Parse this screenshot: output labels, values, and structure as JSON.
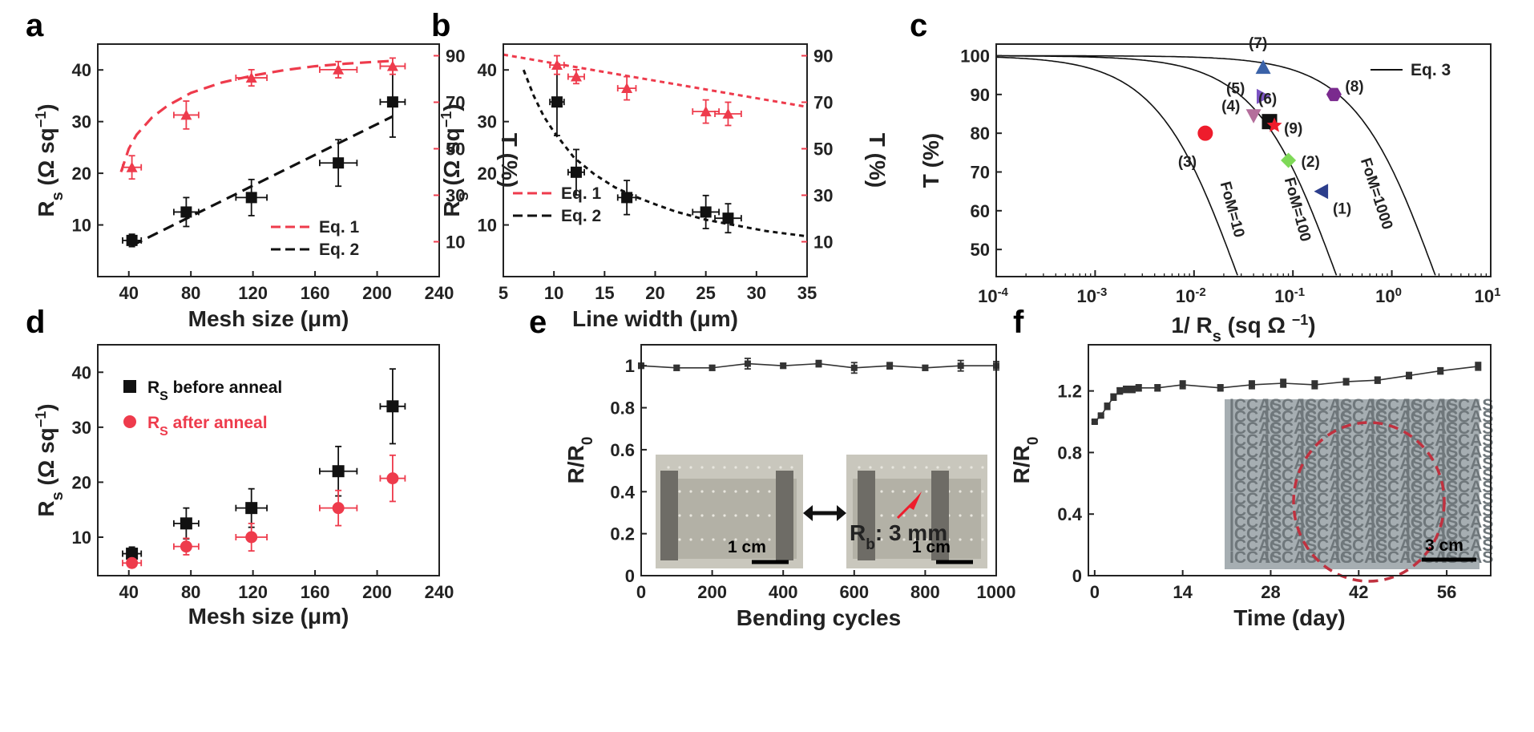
{
  "chart_data": [
    {
      "id": "a",
      "type": "scatter",
      "panel_letter": "a",
      "xlabel": "Mesh size (μm)",
      "xlim": [
        20,
        240
      ],
      "xticks": [
        40,
        80,
        120,
        160,
        200,
        240
      ],
      "ylabel": "Rs (Ω sq⁻¹)",
      "ylabel_main": "R",
      "ylabel_sub": "s",
      "ylabel_rest": " (Ω sq",
      "ylabel_sup": "−1",
      "ylabel_close": ")",
      "ylim": [
        0,
        45
      ],
      "yticks": [
        10,
        20,
        30,
        40
      ],
      "y2label": "T (%)",
      "y2lim": [
        -5,
        95
      ],
      "y2ticks": [
        10,
        30,
        50,
        70,
        90
      ],
      "colors": {
        "black": "#111111",
        "red": "#ee3b4c"
      },
      "series": [
        {
          "name": "Rs",
          "axis": "left",
          "marker": "square",
          "color": "#111111",
          "x": [
            42,
            77,
            119,
            175,
            210
          ],
          "y": [
            7,
            12.5,
            15.3,
            22,
            33.8
          ],
          "xerr": [
            6,
            8,
            10,
            12,
            8
          ],
          "yerr": [
            1.2,
            2.8,
            3.5,
            4.5,
            6.8
          ]
        },
        {
          "name": "T",
          "axis": "right",
          "marker": "triangle",
          "color": "#ee3b4c",
          "x": [
            42,
            77,
            119,
            175,
            210
          ],
          "y": [
            42,
            64.5,
            80.5,
            84,
            85.5
          ],
          "xerr": [
            6,
            8,
            10,
            12,
            8
          ],
          "yerr": [
            5,
            6,
            3.5,
            3.5,
            3.5
          ]
        }
      ],
      "curves": [
        {
          "name": "Eq. 1",
          "axis": "right",
          "color": "#ee3b4c",
          "dash": "dashed",
          "x": [
            35,
            40,
            45,
            55,
            65,
            80,
            100,
            120,
            140,
            160,
            180,
            200,
            210
          ],
          "y": [
            40,
            50,
            56,
            63.5,
            68.5,
            74,
            78.5,
            81.5,
            83.8,
            85.5,
            86.6,
            87.4,
            87.8
          ]
        },
        {
          "name": "Eq. 2",
          "axis": "left",
          "color": "#111111",
          "dash": "dashed",
          "x": [
            42,
            210
          ],
          "y": [
            6,
            31
          ]
        }
      ],
      "legend": {
        "position": "bottom-right",
        "items": [
          {
            "label": "Eq. 1",
            "color": "#ee3b4c"
          },
          {
            "label": "Eq. 2",
            "color": "#111111"
          }
        ]
      }
    },
    {
      "id": "b",
      "type": "scatter",
      "panel_letter": "b",
      "xlabel": "Line width (μm)",
      "xlim": [
        5,
        35
      ],
      "xticks": [
        5,
        10,
        15,
        20,
        25,
        30,
        35
      ],
      "ylabel": "Rs (Ω sq⁻¹)",
      "ylabel_main": "R",
      "ylabel_sub": "s",
      "ylabel_rest": " (Ω sq",
      "ylabel_sup": "−1",
      "ylabel_close": ")",
      "ylim": [
        0,
        45
      ],
      "yticks": [
        10,
        20,
        30,
        40
      ],
      "y2label": "T (%)",
      "y2lim": [
        -5,
        95
      ],
      "y2ticks": [
        10,
        30,
        50,
        70,
        90
      ],
      "series": [
        {
          "name": "Rs",
          "axis": "left",
          "marker": "square",
          "color": "#111111",
          "x": [
            10.3,
            12.2,
            17.2,
            25,
            27.2
          ],
          "y": [
            33.8,
            20.2,
            15.3,
            12.5,
            11.3
          ],
          "xerr": [
            0.7,
            0.8,
            0.9,
            1.3,
            1.3
          ],
          "yerr": [
            6.5,
            4.4,
            3.3,
            3.2,
            2.8
          ]
        },
        {
          "name": "T",
          "axis": "right",
          "marker": "triangle",
          "color": "#ee3b4c",
          "x": [
            10.3,
            12.2,
            17.2,
            25,
            27.2
          ],
          "y": [
            86,
            81,
            76,
            66,
            65
          ],
          "xerr": [
            0.7,
            0.8,
            0.9,
            1.3,
            1.3
          ],
          "yerr": [
            4,
            3,
            5,
            5,
            5
          ]
        }
      ],
      "curves": [
        {
          "name": "Eq. 1",
          "axis": "right",
          "color": "#ee3b4c",
          "dash": "dashed",
          "x": [
            5,
            35
          ],
          "y": [
            90.5,
            68
          ]
        },
        {
          "name": "Eq. 2",
          "axis": "left",
          "color": "#111111",
          "dash": "dashed",
          "x": [
            7,
            8,
            9,
            10,
            11,
            12,
            14,
            16,
            18,
            20,
            22,
            25,
            28,
            31,
            35
          ],
          "y": [
            40,
            35,
            31,
            28,
            25.5,
            23,
            19.8,
            17.3,
            15.5,
            14,
            12.6,
            11,
            9.9,
            8.8,
            7.8
          ]
        }
      ],
      "legend": {
        "position": "bottom-left",
        "items": [
          {
            "label": "Eq. 1",
            "color": "#ee3b4c"
          },
          {
            "label": "Eq. 2",
            "color": "#111111"
          }
        ]
      }
    },
    {
      "id": "c",
      "type": "scatter",
      "panel_letter": "c",
      "xscale": "log",
      "xlabel": "1/ Rs (sq Ω −1)",
      "xlabel_a": "1/ R",
      "xlabel_sub": "s",
      "xlabel_b": " (sq Ω ",
      "xlabel_sup": "−1",
      "xlabel_c": ")",
      "xlim_exp": [
        -4,
        1
      ],
      "xtick_exps": [
        -4,
        -3,
        -2,
        -1,
        0,
        1
      ],
      "ylabel": "T  (%)",
      "ylim": [
        43,
        103
      ],
      "yticks": [
        50,
        60,
        70,
        80,
        90,
        100
      ],
      "points": [
        {
          "label": "(1)",
          "x": 0.195,
          "y": 65,
          "marker": "triangle-left",
          "color": "#2c3e8c"
        },
        {
          "label": "(2)",
          "x": 0.09,
          "y": 73,
          "marker": "diamond",
          "color": "#7ed957"
        },
        {
          "label": "(3)",
          "x": 0.013,
          "y": 80,
          "marker": "circle",
          "color": "#ee1c2c"
        },
        {
          "label": "(4)",
          "x": 0.04,
          "y": 84.5,
          "marker": "triangle-down",
          "color": "#b46e9b"
        },
        {
          "label": "(5)",
          "x": 0.05,
          "y": 89.5,
          "marker": "triangle-right",
          "color": "#7b53c2"
        },
        {
          "label": "(6)",
          "x": 0.058,
          "y": 83,
          "marker": "square",
          "color": "#111111"
        },
        {
          "label": "(7)",
          "x": 0.05,
          "y": 97,
          "marker": "triangle",
          "color": "#3a62a8"
        },
        {
          "label": "(8)",
          "x": 0.26,
          "y": 90,
          "marker": "hexagon",
          "color": "#7a2a8e"
        },
        {
          "label": "(9)",
          "x": 0.065,
          "y": 82,
          "marker": "star",
          "color": "#ee1c2c"
        }
      ],
      "fom_curves": [
        {
          "label": "FoM=10",
          "fom": 10
        },
        {
          "label": "FoM=100",
          "fom": 100
        },
        {
          "label": "FoM=1000",
          "fom": 1000
        }
      ],
      "legend": {
        "position": "top-right",
        "label": "Eq. 3"
      }
    },
    {
      "id": "d",
      "type": "scatter",
      "panel_letter": "d",
      "xlabel": "Mesh size (μm)",
      "xlim": [
        20,
        240
      ],
      "xticks": [
        40,
        80,
        120,
        160,
        200,
        240
      ],
      "ylabel": "Rs (Ω sq⁻¹)",
      "ylabel_main": "R",
      "ylabel_sub": "s",
      "ylabel_rest": " (Ω sq",
      "ylabel_sup": "−1",
      "ylabel_close": ")",
      "ylim": [
        3,
        45
      ],
      "yticks": [
        10,
        20,
        30,
        40
      ],
      "series": [
        {
          "name": "Rs before anneal",
          "name_main": "R",
          "name_sub": "S",
          "name_rest": " before anneal",
          "marker": "square",
          "color": "#111111",
          "x": [
            42,
            77,
            119,
            175,
            210
          ],
          "y": [
            7,
            12.5,
            15.3,
            22,
            33.8
          ],
          "xerr": [
            6,
            8,
            10,
            12,
            8
          ],
          "yerr": [
            1.2,
            2.8,
            3.5,
            4.5,
            6.8
          ]
        },
        {
          "name": "Rs after anneal",
          "name_main": "R",
          "name_sub": "S",
          "name_rest": " after anneal",
          "marker": "circle",
          "color": "#ee3b4c",
          "x": [
            42,
            77,
            119,
            175,
            210
          ],
          "y": [
            5.3,
            8.3,
            10,
            15.3,
            20.7
          ],
          "xerr": [
            6,
            8,
            10,
            12,
            8
          ],
          "yerr": [
            0.7,
            1.5,
            2.5,
            3.2,
            4.2
          ]
        }
      ],
      "legend": {
        "position": "top-left"
      }
    },
    {
      "id": "e",
      "type": "line",
      "panel_letter": "e",
      "xlabel": "Bending cycles",
      "xlim": [
        0,
        1000
      ],
      "xticks": [
        0,
        200,
        400,
        600,
        800,
        1000
      ],
      "ylabel": "R/R0",
      "ylabel_main": "R/R",
      "ylabel_sub": "0",
      "ylim": [
        0,
        1.1
      ],
      "yticks": [
        0.0,
        0.2,
        0.4,
        0.6,
        0.8,
        1.0
      ],
      "series": [
        {
          "name": "R/R0",
          "color": "#333333",
          "x": [
            0,
            100,
            200,
            300,
            400,
            500,
            600,
            700,
            800,
            900,
            1000
          ],
          "y": [
            1.0,
            0.99,
            0.99,
            1.01,
            1.0,
            1.01,
            0.99,
            1.0,
            0.99,
            1.0,
            1.0
          ],
          "yerr": [
            0.012,
            0.012,
            0.012,
            0.025,
            0.012,
            0.015,
            0.025,
            0.015,
            0.012,
            0.025,
            0.02
          ]
        }
      ],
      "inset": {
        "scale_left": "1 cm",
        "scale_right": "1 cm",
        "rb_main": "R",
        "rb_sub": "b",
        "rb_rest": ": 3 mm"
      }
    },
    {
      "id": "f",
      "type": "line",
      "panel_letter": "f",
      "xlabel": "Time (day)",
      "xlim": [
        -1,
        63
      ],
      "xticks": [
        0,
        14,
        28,
        42,
        56
      ],
      "ylabel": "R/R0",
      "ylabel_main": "R/R",
      "ylabel_sub": "0",
      "ylim": [
        0,
        1.5
      ],
      "yticks": [
        0.0,
        0.4,
        0.8,
        1.2
      ],
      "series": [
        {
          "name": "R/R0",
          "color": "#333333",
          "x": [
            0,
            1,
            2,
            3,
            4,
            5,
            6,
            7,
            10,
            14,
            20,
            25,
            30,
            35,
            40,
            45,
            50,
            55,
            61
          ],
          "y": [
            1.0,
            1.04,
            1.1,
            1.16,
            1.2,
            1.21,
            1.21,
            1.22,
            1.22,
            1.24,
            1.22,
            1.24,
            1.25,
            1.24,
            1.26,
            1.27,
            1.3,
            1.33,
            1.36
          ],
          "yerr": [
            0.01,
            0.01,
            0.02,
            0.02,
            0.02,
            0.02,
            0.02,
            0.02,
            0.02,
            0.025,
            0.02,
            0.025,
            0.025,
            0.025,
            0.02,
            0.02,
            0.02,
            0.02,
            0.025
          ]
        }
      ],
      "inset": {
        "text": "ICCAS",
        "scale": "3 cm"
      }
    }
  ]
}
